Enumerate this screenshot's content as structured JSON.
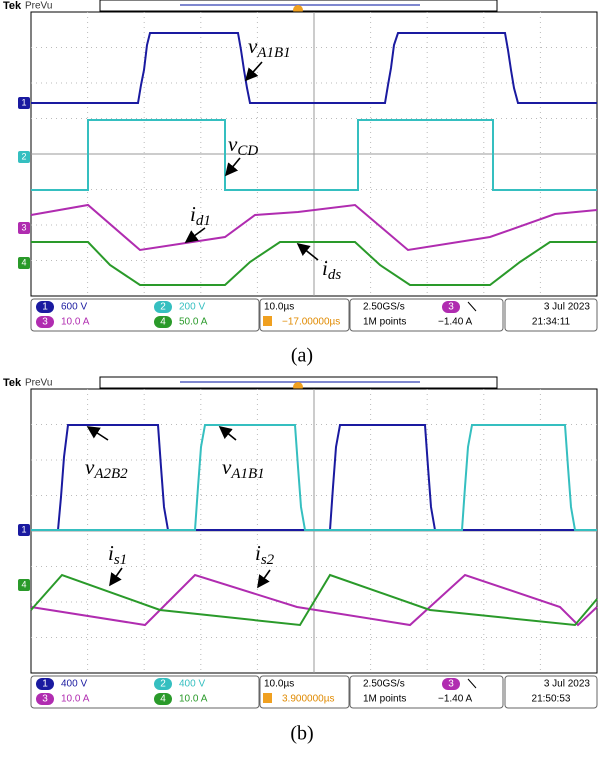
{
  "panels": [
    {
      "brand": "Tek",
      "mode": "PreVu",
      "channel_markers": [
        "1",
        "2",
        "3",
        "4"
      ],
      "annotations": [
        {
          "base": "v",
          "sub": "A1B1"
        },
        {
          "base": "v",
          "sub": "CD"
        },
        {
          "base": "i",
          "sub": "d1"
        },
        {
          "base": "i",
          "sub": "ds"
        }
      ],
      "status": {
        "channels": [
          {
            "number": "1",
            "scale": "600 V"
          },
          {
            "number": "2",
            "scale": "200 V"
          },
          {
            "number": "3",
            "scale": "10.0 A"
          },
          {
            "number": "4",
            "scale": "50.0 A"
          }
        ],
        "timebase": "10.0µs",
        "trigger_position": "−17.00000µs",
        "sample_rate": "2.50GS/s",
        "record_length": "1M points",
        "trigger_source": "3",
        "trigger_level": "−1.40 A",
        "date": "3 Jul  2023",
        "time": "21:34:11"
      },
      "caption": "(a)"
    },
    {
      "brand": "Tek",
      "mode": "PreVu",
      "channel_markers": [
        "1",
        "4"
      ],
      "annotations": [
        {
          "base": "v",
          "sub": "A2B2"
        },
        {
          "base": "v",
          "sub": "A1B1"
        },
        {
          "base": "i",
          "sub": "s1"
        },
        {
          "base": "i",
          "sub": "s2"
        }
      ],
      "status": {
        "channels": [
          {
            "number": "1",
            "scale": "400 V"
          },
          {
            "number": "2",
            "scale": "400 V"
          },
          {
            "number": "3",
            "scale": "10.0 A"
          },
          {
            "number": "4",
            "scale": "10.0 A"
          }
        ],
        "timebase": "10.0µs",
        "trigger_position": "3.900000µs",
        "sample_rate": "2.50GS/s",
        "record_length": "1M points",
        "trigger_source": "3",
        "trigger_level": "−1.40 A",
        "date": "3 Jul  2023",
        "time": "21:50:53"
      },
      "caption": "(b)"
    }
  ]
}
